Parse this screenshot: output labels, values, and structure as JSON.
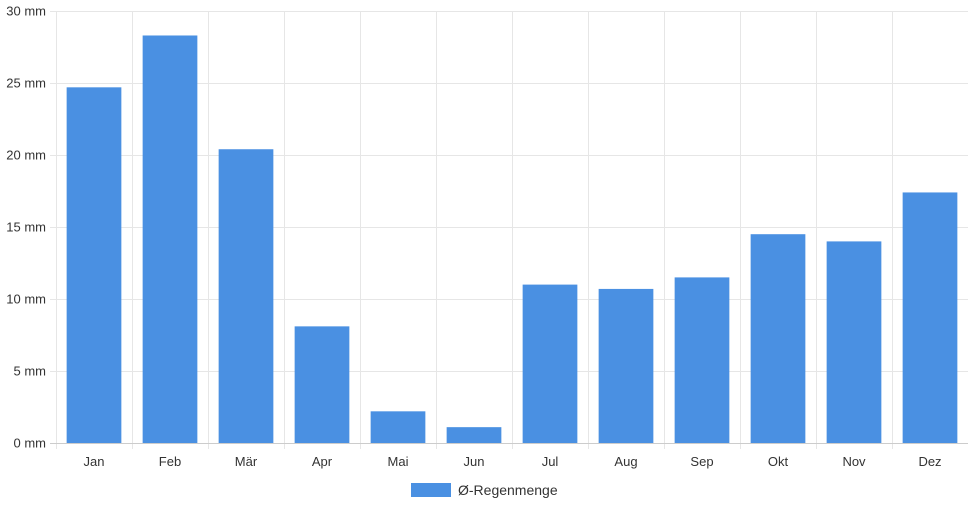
{
  "chart_data": {
    "type": "bar",
    "categories": [
      "Jan",
      "Feb",
      "Mär",
      "Apr",
      "Mai",
      "Jun",
      "Jul",
      "Aug",
      "Sep",
      "Okt",
      "Nov",
      "Dez"
    ],
    "series": [
      {
        "name": "Ø-Regenmenge",
        "color": "#4a90e2",
        "values": [
          24.7,
          28.3,
          20.4,
          8.1,
          2.2,
          1.1,
          11.0,
          10.7,
          11.5,
          14.5,
          14.0,
          17.4
        ]
      }
    ],
    "ylim": [
      0,
      30
    ],
    "yticks": [
      0,
      5,
      10,
      15,
      20,
      25,
      30
    ],
    "y_unit": "mm",
    "grid": true,
    "legend": "bottom"
  }
}
